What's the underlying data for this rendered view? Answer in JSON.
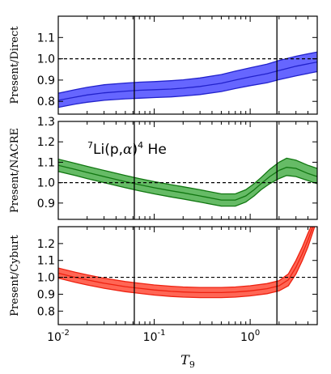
{
  "chart_data": {
    "type": "line",
    "xlabel": "T",
    "xlabel_sub": "9",
    "xscale": "log",
    "xlim": [
      0.01,
      5.0
    ],
    "x_ticks": [
      {
        "value": 0.01,
        "base": "10",
        "exp": "-2"
      },
      {
        "value": 0.1,
        "base": "10",
        "exp": "-1"
      },
      {
        "value": 1.0,
        "base": "10",
        "exp": "0"
      }
    ],
    "vlines": [
      0.062,
      1.9
    ],
    "annotation": {
      "pre_sup": "7",
      "main": "Li(p,",
      "alpha": "α",
      "close": ")",
      "post_sup": "4",
      "tail": " He"
    },
    "panels": [
      {
        "ylabel": "Present/Direct",
        "ylim": [
          0.74,
          1.2
        ],
        "yticks": [
          "0.8",
          "0.9",
          "1.0",
          "1.1"
        ],
        "ytick_values": [
          0.8,
          0.9,
          1.0,
          1.1
        ],
        "reference_line": 1.0,
        "fill": "#6666ff",
        "line": "#2222cc",
        "series": [
          {
            "name": "central",
            "x": [
              0.01,
              0.015,
              0.02,
              0.03,
              0.05,
              0.07,
              0.1,
              0.15,
              0.2,
              0.3,
              0.5,
              0.7,
              1.0,
              1.5,
              2.0,
              3.0,
              5.0
            ],
            "y": [
              0.805,
              0.82,
              0.83,
              0.84,
              0.848,
              0.852,
              0.855,
              0.858,
              0.862,
              0.87,
              0.885,
              0.9,
              0.915,
              0.93,
              0.945,
              0.965,
              0.985
            ]
          },
          {
            "name": "upper",
            "x": [
              0.01,
              0.015,
              0.02,
              0.03,
              0.05,
              0.07,
              0.1,
              0.15,
              0.2,
              0.3,
              0.5,
              0.7,
              1.0,
              1.5,
              2.0,
              3.0,
              5.0
            ],
            "y": [
              0.838,
              0.855,
              0.866,
              0.878,
              0.886,
              0.89,
              0.893,
              0.897,
              0.901,
              0.91,
              0.926,
              0.942,
              0.958,
              0.975,
              0.992,
              1.012,
              1.032
            ]
          },
          {
            "name": "lower",
            "x": [
              0.01,
              0.015,
              0.02,
              0.03,
              0.05,
              0.07,
              0.1,
              0.15,
              0.2,
              0.3,
              0.5,
              0.7,
              1.0,
              1.5,
              2.0,
              3.0,
              5.0
            ],
            "y": [
              0.772,
              0.787,
              0.796,
              0.805,
              0.812,
              0.815,
              0.818,
              0.821,
              0.825,
              0.832,
              0.846,
              0.86,
              0.874,
              0.887,
              0.902,
              0.92,
              0.94
            ]
          }
        ]
      },
      {
        "ylabel": "Present/NACRE",
        "ylim": [
          0.82,
          1.3
        ],
        "yticks": [
          "0.9",
          "1.0",
          "1.1",
          "1.2",
          "1.3"
        ],
        "ytick_values": [
          0.9,
          1.0,
          1.1,
          1.2,
          1.3
        ],
        "reference_line": 1.0,
        "fill": "#66bb66",
        "line": "#117711",
        "series": [
          {
            "name": "central",
            "x": [
              0.01,
              0.015,
              0.02,
              0.03,
              0.05,
              0.07,
              0.1,
              0.15,
              0.2,
              0.3,
              0.5,
              0.7,
              0.9,
              1.1,
              1.3,
              1.6,
              2.0,
              2.4,
              3.0,
              4.0,
              5.0
            ],
            "y": [
              1.085,
              1.065,
              1.05,
              1.03,
              1.005,
              0.99,
              0.975,
              0.96,
              0.95,
              0.935,
              0.915,
              0.915,
              0.935,
              0.965,
              0.995,
              1.03,
              1.06,
              1.075,
              1.07,
              1.045,
              1.03
            ]
          },
          {
            "name": "upper",
            "x": [
              0.01,
              0.015,
              0.02,
              0.03,
              0.05,
              0.07,
              0.1,
              0.15,
              0.2,
              0.3,
              0.5,
              0.7,
              0.9,
              1.1,
              1.3,
              1.6,
              2.0,
              2.4,
              3.0,
              4.0,
              5.0
            ],
            "y": [
              1.115,
              1.095,
              1.08,
              1.06,
              1.035,
              1.02,
              1.005,
              0.99,
              0.98,
              0.965,
              0.945,
              0.945,
              0.965,
              0.995,
              1.025,
              1.065,
              1.1,
              1.12,
              1.11,
              1.085,
              1.07
            ]
          },
          {
            "name": "lower",
            "x": [
              0.01,
              0.015,
              0.02,
              0.03,
              0.05,
              0.07,
              0.1,
              0.15,
              0.2,
              0.3,
              0.5,
              0.7,
              0.9,
              1.1,
              1.3,
              1.6,
              2.0,
              2.4,
              3.0,
              4.0,
              5.0
            ],
            "y": [
              1.055,
              1.035,
              1.02,
              1.0,
              0.975,
              0.96,
              0.945,
              0.93,
              0.92,
              0.905,
              0.885,
              0.885,
              0.905,
              0.935,
              0.965,
              0.995,
              1.02,
              1.035,
              1.03,
              1.01,
              0.995
            ]
          }
        ]
      },
      {
        "ylabel": "Present/Cyburt",
        "ylim": [
          0.72,
          1.3
        ],
        "yticks": [
          "0.8",
          "0.9",
          "1.0",
          "1.1",
          "1.2"
        ],
        "ytick_values": [
          0.8,
          0.9,
          1.0,
          1.1,
          1.2
        ],
        "reference_line": 1.0,
        "fill": "#ff6655",
        "line": "#ee2211",
        "series": [
          {
            "name": "central",
            "x": [
              0.01,
              0.015,
              0.02,
              0.03,
              0.05,
              0.07,
              0.1,
              0.15,
              0.2,
              0.3,
              0.5,
              0.7,
              1.0,
              1.5,
              2.0,
              2.5,
              3.0,
              3.5,
              4.0,
              4.5
            ],
            "y": [
              1.025,
              1.0,
              0.985,
              0.965,
              0.945,
              0.935,
              0.925,
              0.917,
              0.913,
              0.91,
              0.91,
              0.913,
              0.92,
              0.933,
              0.95,
              0.985,
              1.06,
              1.14,
              1.22,
              1.3
            ]
          },
          {
            "name": "upper",
            "x": [
              0.01,
              0.015,
              0.02,
              0.03,
              0.05,
              0.07,
              0.1,
              0.15,
              0.2,
              0.3,
              0.5,
              0.7,
              1.0,
              1.5,
              2.0,
              2.5,
              3.0,
              3.5,
              4.0,
              4.3
            ],
            "y": [
              1.055,
              1.03,
              1.015,
              0.995,
              0.975,
              0.965,
              0.955,
              0.947,
              0.943,
              0.94,
              0.94,
              0.943,
              0.95,
              0.963,
              0.98,
              1.02,
              1.1,
              1.18,
              1.26,
              1.3
            ]
          },
          {
            "name": "lower",
            "x": [
              0.01,
              0.015,
              0.02,
              0.03,
              0.05,
              0.07,
              0.1,
              0.15,
              0.2,
              0.3,
              0.5,
              0.7,
              1.0,
              1.5,
              2.0,
              2.5,
              3.0,
              3.5,
              4.0,
              4.7
            ],
            "y": [
              0.995,
              0.97,
              0.955,
              0.935,
              0.915,
              0.905,
              0.895,
              0.887,
              0.883,
              0.88,
              0.88,
              0.883,
              0.89,
              0.903,
              0.92,
              0.95,
              1.02,
              1.1,
              1.18,
              1.3
            ]
          }
        ]
      }
    ]
  }
}
